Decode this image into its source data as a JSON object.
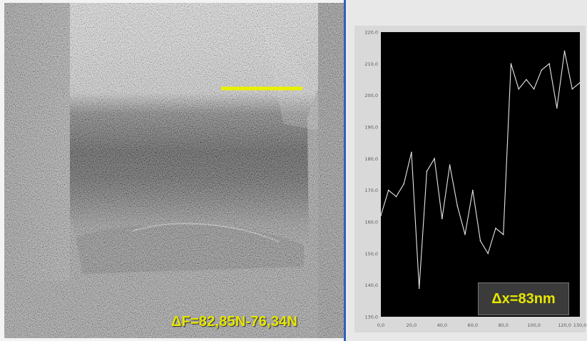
{
  "measurements": {
    "force_delta": "ΔF=82,85N-76,34N",
    "x_delta": "Δx=83nm"
  },
  "colors": {
    "profile_line": "#e9f000",
    "plot_bg": "#000000",
    "plot_line": "#e6e6e6",
    "annotation": "#e6e600",
    "divider": "#2e5fb6"
  },
  "chart_data": {
    "type": "line",
    "x": [
      0,
      5,
      10,
      15,
      20,
      25,
      30,
      35,
      40,
      45,
      50,
      55,
      60,
      65,
      70,
      75,
      80,
      85,
      90,
      95,
      100,
      105,
      110,
      115,
      120,
      125,
      130
    ],
    "y": [
      162,
      170,
      168,
      172,
      182,
      139,
      176,
      180,
      161,
      178,
      165,
      156,
      170,
      154,
      150,
      158,
      156,
      210,
      202,
      205,
      202,
      208,
      210,
      196,
      214,
      202,
      204
    ],
    "xlim": [
      0,
      130
    ],
    "ylim": [
      130,
      220
    ],
    "x_ticks": [
      "0,0",
      "20,0",
      "40,0",
      "60,0",
      "80,0",
      "100,0",
      "120,0",
      "130,0"
    ],
    "y_ticks": [
      "220,0",
      "210,0",
      "200,0",
      "190,0",
      "180,0",
      "170,0",
      "160,0",
      "150,0",
      "140,0",
      "130,0"
    ],
    "grid": false,
    "title": "",
    "xlabel": "",
    "ylabel": ""
  }
}
